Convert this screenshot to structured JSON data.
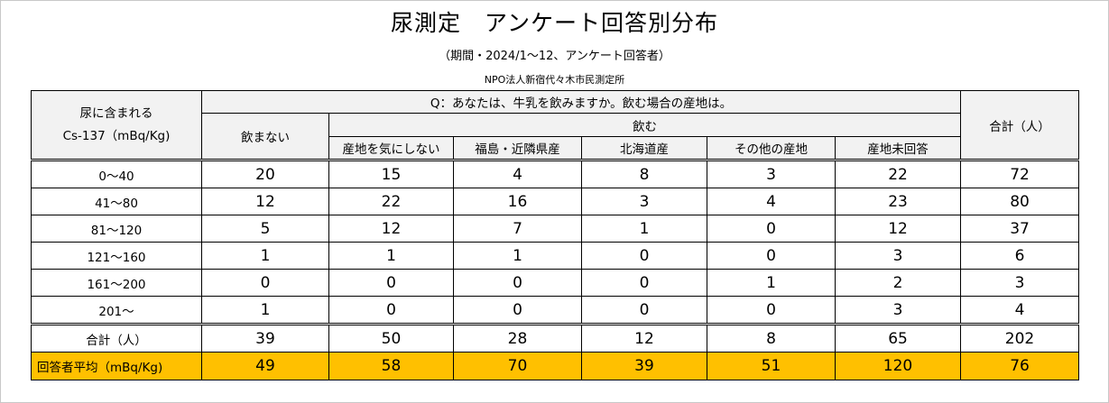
{
  "title": "尿測定　アンケート回答別分布",
  "subtitle": "（期間・2024/1～12、アンケート回答者）",
  "organization": "NPO法人新宿代々木市民測定所",
  "table": {
    "row_header_line1": "尿に含まれる",
    "row_header_line2": "Cs-137（mBq/Kg)",
    "question": "Q：あなたは、牛乳を飲みますか。飲む場合の産地は。",
    "no_drink": "飲まない",
    "drink": "飲む",
    "drink_columns": [
      "産地を気にしない",
      "福島・近隣県産",
      "北海道産",
      "その他の産地",
      "産地未回答"
    ],
    "total_header": "合計（人）",
    "rows": [
      {
        "label": "0～40",
        "values": [
          "20",
          "15",
          "4",
          "8",
          "3",
          "22",
          "72"
        ]
      },
      {
        "label": "41～80",
        "values": [
          "12",
          "22",
          "16",
          "3",
          "4",
          "23",
          "80"
        ]
      },
      {
        "label": "81～120",
        "values": [
          "5",
          "12",
          "7",
          "1",
          "0",
          "12",
          "37"
        ]
      },
      {
        "label": "121～160",
        "values": [
          "1",
          "1",
          "1",
          "0",
          "0",
          "3",
          "6"
        ]
      },
      {
        "label": "161～200",
        "values": [
          "0",
          "0",
          "0",
          "0",
          "1",
          "2",
          "3"
        ]
      },
      {
        "label": "201～",
        "values": [
          "1",
          "0",
          "0",
          "0",
          "0",
          "3",
          "4"
        ]
      }
    ],
    "total_row": {
      "label": "合計（人）",
      "values": [
        "39",
        "50",
        "28",
        "12",
        "8",
        "65",
        "202"
      ]
    },
    "average_row": {
      "label": "回答者平均（mBq/Kg)",
      "values": [
        "49",
        "58",
        "70",
        "39",
        "51",
        "120",
        "76"
      ]
    }
  },
  "colors": {
    "average_highlight": "#ffc000",
    "header_bg": "#f2f2f2"
  }
}
